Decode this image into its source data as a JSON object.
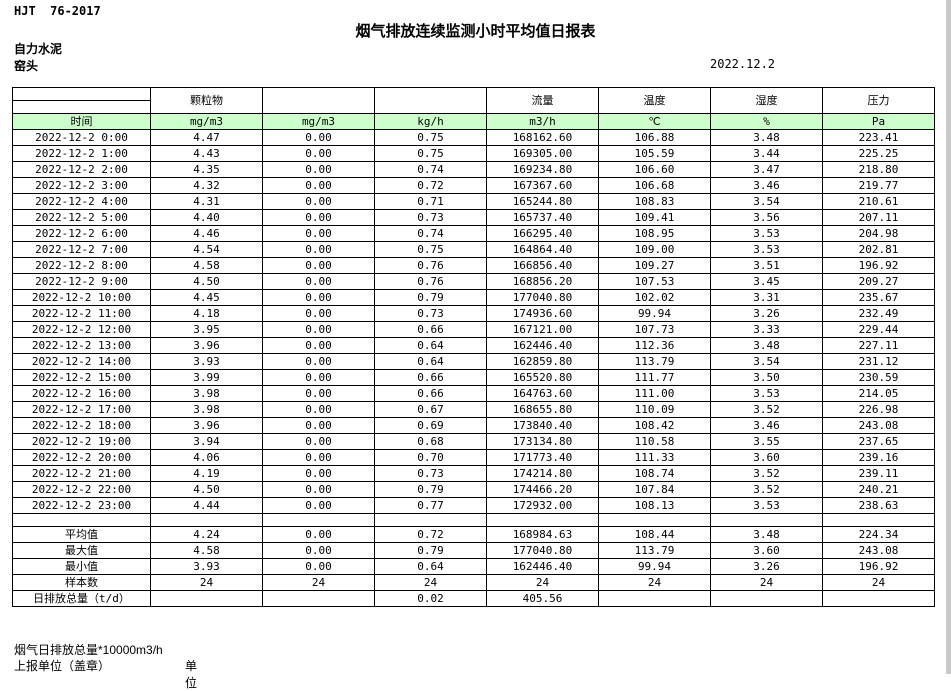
{
  "page": {
    "doc_code": "HJT  76-2017",
    "title": "烟气排放连续监测小时平均值日报表",
    "company": "自力水泥",
    "location": "窑头",
    "date": "2022.12.2"
  },
  "table": {
    "group_headers": [
      "",
      "颗粒物",
      "",
      "",
      "流量",
      "温度",
      "湿度",
      "压力"
    ],
    "unit_row": {
      "time_label": "时间",
      "units": [
        "mg/m3",
        "mg/m3",
        "kg/h",
        "m3/h",
        "℃",
        "%",
        "Pa"
      ]
    },
    "rows": [
      {
        "time": "2022-12-2 0:00",
        "values": [
          "4.47",
          "0.00",
          "0.75",
          "168162.60",
          "106.88",
          "3.48",
          "223.41"
        ]
      },
      {
        "time": "2022-12-2 1:00",
        "values": [
          "4.43",
          "0.00",
          "0.75",
          "169305.00",
          "105.59",
          "3.44",
          "225.25"
        ]
      },
      {
        "time": "2022-12-2 2:00",
        "values": [
          "4.35",
          "0.00",
          "0.74",
          "169234.80",
          "106.60",
          "3.47",
          "218.80"
        ]
      },
      {
        "time": "2022-12-2 3:00",
        "values": [
          "4.32",
          "0.00",
          "0.72",
          "167367.60",
          "106.68",
          "3.46",
          "219.77"
        ]
      },
      {
        "time": "2022-12-2 4:00",
        "values": [
          "4.31",
          "0.00",
          "0.71",
          "165244.80",
          "108.83",
          "3.54",
          "210.61"
        ]
      },
      {
        "time": "2022-12-2 5:00",
        "values": [
          "4.40",
          "0.00",
          "0.73",
          "165737.40",
          "109.41",
          "3.56",
          "207.11"
        ]
      },
      {
        "time": "2022-12-2 6:00",
        "values": [
          "4.46",
          "0.00",
          "0.74",
          "166295.40",
          "108.95",
          "3.53",
          "204.98"
        ]
      },
      {
        "time": "2022-12-2 7:00",
        "values": [
          "4.54",
          "0.00",
          "0.75",
          "164864.40",
          "109.00",
          "3.53",
          "202.81"
        ]
      },
      {
        "time": "2022-12-2 8:00",
        "values": [
          "4.58",
          "0.00",
          "0.76",
          "166856.40",
          "109.27",
          "3.51",
          "196.92"
        ]
      },
      {
        "time": "2022-12-2 9:00",
        "values": [
          "4.50",
          "0.00",
          "0.76",
          "168856.20",
          "107.53",
          "3.45",
          "209.27"
        ]
      },
      {
        "time": "2022-12-2 10:00",
        "values": [
          "4.45",
          "0.00",
          "0.79",
          "177040.80",
          "102.02",
          "3.31",
          "235.67"
        ]
      },
      {
        "time": "2022-12-2 11:00",
        "values": [
          "4.18",
          "0.00",
          "0.73",
          "174936.60",
          "99.94",
          "3.26",
          "232.49"
        ]
      },
      {
        "time": "2022-12-2 12:00",
        "values": [
          "3.95",
          "0.00",
          "0.66",
          "167121.00",
          "107.73",
          "3.33",
          "229.44"
        ]
      },
      {
        "time": "2022-12-2 13:00",
        "values": [
          "3.96",
          "0.00",
          "0.64",
          "162446.40",
          "112.36",
          "3.48",
          "227.11"
        ]
      },
      {
        "time": "2022-12-2 14:00",
        "values": [
          "3.93",
          "0.00",
          "0.64",
          "162859.80",
          "113.79",
          "3.54",
          "231.12"
        ]
      },
      {
        "time": "2022-12-2 15:00",
        "values": [
          "3.99",
          "0.00",
          "0.66",
          "165520.80",
          "111.77",
          "3.50",
          "230.59"
        ]
      },
      {
        "time": "2022-12-2 16:00",
        "values": [
          "3.98",
          "0.00",
          "0.66",
          "164763.60",
          "111.00",
          "3.53",
          "214.05"
        ]
      },
      {
        "time": "2022-12-2 17:00",
        "values": [
          "3.98",
          "0.00",
          "0.67",
          "168655.80",
          "110.09",
          "3.52",
          "226.98"
        ]
      },
      {
        "time": "2022-12-2 18:00",
        "values": [
          "3.96",
          "0.00",
          "0.69",
          "173840.40",
          "108.42",
          "3.46",
          "243.08"
        ]
      },
      {
        "time": "2022-12-2 19:00",
        "values": [
          "3.94",
          "0.00",
          "0.68",
          "173134.80",
          "110.58",
          "3.55",
          "237.65"
        ]
      },
      {
        "time": "2022-12-2 20:00",
        "values": [
          "4.06",
          "0.00",
          "0.70",
          "171773.40",
          "111.33",
          "3.60",
          "239.16"
        ]
      },
      {
        "time": "2022-12-2 21:00",
        "values": [
          "4.19",
          "0.00",
          "0.73",
          "174214.80",
          "108.74",
          "3.52",
          "239.11"
        ]
      },
      {
        "time": "2022-12-2 22:00",
        "values": [
          "4.50",
          "0.00",
          "0.79",
          "174466.20",
          "107.84",
          "3.52",
          "240.21"
        ]
      },
      {
        "time": "2022-12-2 23:00",
        "values": [
          "4.44",
          "0.00",
          "0.77",
          "172932.00",
          "108.13",
          "3.53",
          "238.63"
        ]
      }
    ],
    "summary": [
      {
        "label": "平均值",
        "values": [
          "4.24",
          "0.00",
          "0.72",
          "168984.63",
          "108.44",
          "3.48",
          "224.34"
        ]
      },
      {
        "label": "最大值",
        "values": [
          "4.58",
          "0.00",
          "0.79",
          "177040.80",
          "113.79",
          "3.60",
          "243.08"
        ]
      },
      {
        "label": "最小值",
        "values": [
          "3.93",
          "0.00",
          "0.64",
          "162446.40",
          "99.94",
          "3.26",
          "196.92"
        ]
      },
      {
        "label": "样本数",
        "values": [
          "24",
          "24",
          "24",
          "24",
          "24",
          "24",
          "24"
        ]
      },
      {
        "label": "日排放总量（t/d）",
        "values": [
          "",
          "",
          "0.02",
          "405.56",
          "",
          "",
          ""
        ]
      }
    ]
  },
  "footer": {
    "note": "烟气日排放总量*10000m3/h",
    "report_unit_label": "上报单位（盖章）",
    "unit_label": "单位"
  },
  "colors": {
    "header_green": "#ccffcc",
    "border": "#000000"
  }
}
